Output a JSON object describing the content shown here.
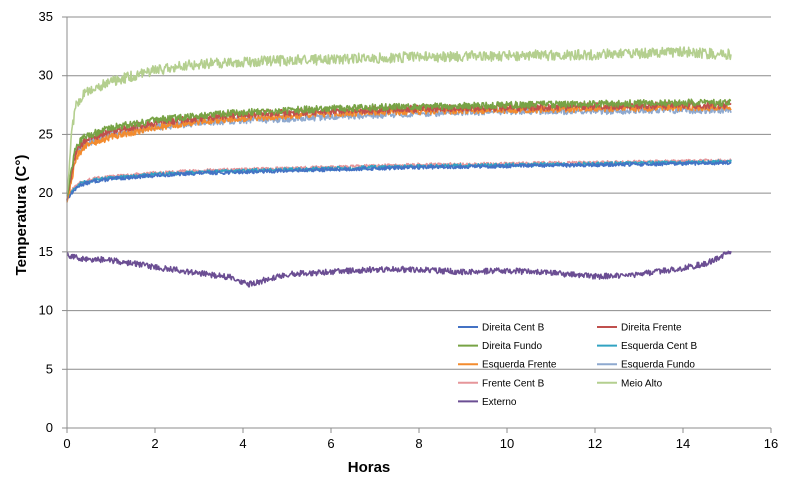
{
  "chart_data": {
    "type": "line",
    "title": "",
    "xlabel": "Horas",
    "ylabel": "Temperatura (C°)",
    "xlim": [
      0,
      16
    ],
    "ylim": [
      0,
      35
    ],
    "xticks": [
      0,
      2,
      4,
      6,
      8,
      10,
      12,
      14,
      16
    ],
    "yticks": [
      0,
      5,
      10,
      15,
      20,
      25,
      30,
      35
    ],
    "grid": "horizontal",
    "legend_position": "inside-bottom-right",
    "series": [
      {
        "name": "Direita Cent B",
        "color": "#4472C4",
        "noise": 0.15,
        "points": [
          [
            0,
            19.5
          ],
          [
            0.1,
            20
          ],
          [
            0.3,
            20.7
          ],
          [
            0.6,
            21
          ],
          [
            1,
            21.2
          ],
          [
            2,
            21.5
          ],
          [
            3,
            21.7
          ],
          [
            4,
            21.8
          ],
          [
            6,
            22
          ],
          [
            8,
            22.2
          ],
          [
            10,
            22.3
          ],
          [
            12,
            22.4
          ],
          [
            14,
            22.5
          ],
          [
            15.1,
            22.6
          ]
        ]
      },
      {
        "name": "Direita Frente",
        "color": "#C0504D",
        "noise": 0.3,
        "points": [
          [
            0,
            19.5
          ],
          [
            0.1,
            21.5
          ],
          [
            0.2,
            23.5
          ],
          [
            0.4,
            24.5
          ],
          [
            1,
            25.3
          ],
          [
            2,
            26
          ],
          [
            3,
            26.4
          ],
          [
            4,
            26.7
          ],
          [
            6,
            27
          ],
          [
            8,
            27.2
          ],
          [
            10,
            27.3
          ],
          [
            12,
            27.4
          ],
          [
            14,
            27.5
          ],
          [
            15.1,
            27.5
          ]
        ]
      },
      {
        "name": "Direita Fundo",
        "color": "#77A345",
        "noise": 0.3,
        "points": [
          [
            0,
            19.8
          ],
          [
            0.1,
            22
          ],
          [
            0.2,
            24
          ],
          [
            0.4,
            24.8
          ],
          [
            1,
            25.6
          ],
          [
            2,
            26.2
          ],
          [
            3,
            26.6
          ],
          [
            4,
            26.9
          ],
          [
            6,
            27.2
          ],
          [
            8,
            27.4
          ],
          [
            10,
            27.5
          ],
          [
            12,
            27.6
          ],
          [
            14,
            27.7
          ],
          [
            15.1,
            27.7
          ]
        ]
      },
      {
        "name": "Esquerda Cent B",
        "color": "#31A3C2",
        "noise": 0.15,
        "points": [
          [
            0,
            19.5
          ],
          [
            0.1,
            20.1
          ],
          [
            0.3,
            20.8
          ],
          [
            0.6,
            21.1
          ],
          [
            1,
            21.3
          ],
          [
            2,
            21.6
          ],
          [
            3,
            21.8
          ],
          [
            4,
            21.9
          ],
          [
            6,
            22.1
          ],
          [
            8,
            22.3
          ],
          [
            10,
            22.4
          ],
          [
            12,
            22.5
          ],
          [
            14,
            22.6
          ],
          [
            15.1,
            22.7
          ]
        ]
      },
      {
        "name": "Esquerda Frente",
        "color": "#F38B2E",
        "noise": 0.3,
        "points": [
          [
            0,
            19.2
          ],
          [
            0.1,
            21
          ],
          [
            0.2,
            23
          ],
          [
            0.4,
            24
          ],
          [
            1,
            24.8
          ],
          [
            2,
            25.6
          ],
          [
            3,
            26.1
          ],
          [
            4,
            26.4
          ],
          [
            6,
            26.8
          ],
          [
            8,
            27
          ],
          [
            10,
            27.1
          ],
          [
            12,
            27.2
          ],
          [
            14,
            27.3
          ],
          [
            15.1,
            27.3
          ]
        ]
      },
      {
        "name": "Esquerda Fundo",
        "color": "#8EA9CF",
        "noise": 0.3,
        "points": [
          [
            0,
            19.3
          ],
          [
            0.1,
            21.5
          ],
          [
            0.2,
            23.5
          ],
          [
            0.4,
            24.2
          ],
          [
            1,
            25
          ],
          [
            2,
            25.6
          ],
          [
            3,
            26
          ],
          [
            4,
            26.2
          ],
          [
            6,
            26.5
          ],
          [
            8,
            26.8
          ],
          [
            10,
            27
          ],
          [
            12,
            27
          ],
          [
            14,
            27.1
          ],
          [
            15.1,
            27
          ]
        ]
      },
      {
        "name": "Frente Cent B",
        "color": "#E6969A",
        "noise": 0.15,
        "points": [
          [
            0,
            19.7
          ],
          [
            0.1,
            20.2
          ],
          [
            0.3,
            20.9
          ],
          [
            0.6,
            21.2
          ],
          [
            1,
            21.4
          ],
          [
            2,
            21.7
          ],
          [
            3,
            21.9
          ],
          [
            4,
            22
          ],
          [
            6,
            22.2
          ],
          [
            8,
            22.4
          ],
          [
            10,
            22.5
          ],
          [
            12,
            22.6
          ],
          [
            14,
            22.7
          ],
          [
            15.1,
            22.8
          ]
        ]
      },
      {
        "name": "Meio Alto",
        "color": "#B4CF8F",
        "noise": 0.45,
        "points": [
          [
            0,
            19.8
          ],
          [
            0.1,
            25
          ],
          [
            0.2,
            27.5
          ],
          [
            0.4,
            28.5
          ],
          [
            1,
            29.5
          ],
          [
            2,
            30.5
          ],
          [
            3,
            31
          ],
          [
            4,
            31.2
          ],
          [
            6,
            31.4
          ],
          [
            8,
            31.6
          ],
          [
            10,
            31.7
          ],
          [
            12,
            31.8
          ],
          [
            14,
            32
          ],
          [
            15.1,
            31.8
          ]
        ]
      },
      {
        "name": "Externo",
        "color": "#6B4E93",
        "noise": 0.25,
        "points": [
          [
            0,
            14.8
          ],
          [
            0.3,
            14.4
          ],
          [
            1,
            14.3
          ],
          [
            2,
            13.7
          ],
          [
            3,
            13.2
          ],
          [
            3.8,
            12.8
          ],
          [
            4.1,
            12.2
          ],
          [
            4.5,
            12.6
          ],
          [
            5,
            13.1
          ],
          [
            6,
            13.3
          ],
          [
            7,
            13.5
          ],
          [
            8,
            13.5
          ],
          [
            9,
            13.3
          ],
          [
            10,
            13.4
          ],
          [
            11,
            13.2
          ],
          [
            12,
            12.9
          ],
          [
            13,
            13.1
          ],
          [
            14,
            13.6
          ],
          [
            14.5,
            14
          ],
          [
            15.1,
            15
          ]
        ]
      }
    ]
  }
}
